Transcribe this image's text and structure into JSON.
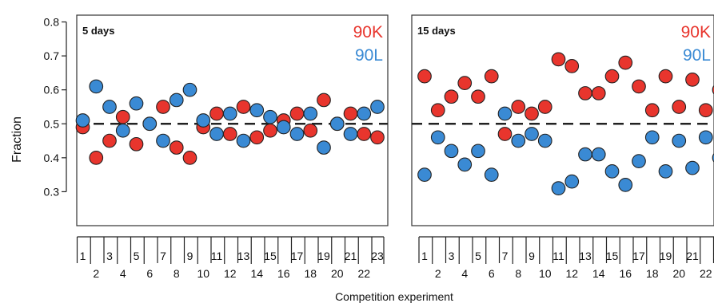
{
  "axis": {
    "ylabel": "Fraction",
    "xlabel": "Competition experiment",
    "yticks": [
      "0.8",
      "0.7",
      "0.6",
      "0.5",
      "0.4",
      "0.3"
    ],
    "ylim": [
      0.2,
      0.82
    ],
    "reference_line": 0.5,
    "odd_ticks": [
      "1",
      "3",
      "5",
      "7",
      "9",
      "11",
      "13",
      "15",
      "17",
      "19",
      "21",
      "23"
    ],
    "even_ticks": [
      "2",
      "4",
      "6",
      "8",
      "10",
      "12",
      "14",
      "16",
      "18",
      "20",
      "22"
    ]
  },
  "colors": {
    "90K": "#e8352d",
    "90L": "#3a8ad4"
  },
  "chart_data": [
    {
      "type": "scatter",
      "title": "5 days",
      "x": [
        1,
        2,
        3,
        4,
        5,
        6,
        7,
        8,
        9,
        10,
        11,
        12,
        13,
        14,
        15,
        16,
        17,
        18,
        19,
        20,
        21,
        22,
        23
      ],
      "series": [
        {
          "name": "90K",
          "values": [
            0.49,
            0.4,
            0.45,
            0.52,
            0.44,
            0.5,
            0.55,
            0.43,
            0.4,
            0.49,
            0.53,
            0.47,
            0.55,
            0.46,
            0.48,
            0.51,
            0.53,
            0.48,
            0.57,
            0.5,
            0.53,
            0.47,
            0.46
          ]
        },
        {
          "name": "90L",
          "values": [
            0.51,
            0.61,
            0.55,
            0.48,
            0.56,
            0.5,
            0.45,
            0.57,
            0.6,
            0.51,
            0.47,
            0.53,
            0.45,
            0.54,
            0.52,
            0.49,
            0.47,
            0.53,
            0.43,
            0.5,
            0.47,
            0.53,
            0.55
          ]
        }
      ]
    },
    {
      "type": "scatter",
      "title": "15 days",
      "x": [
        1,
        2,
        3,
        4,
        5,
        6,
        7,
        8,
        9,
        10,
        11,
        12,
        13,
        14,
        15,
        16,
        17,
        18,
        19,
        20,
        21,
        22,
        23
      ],
      "series": [
        {
          "name": "90K",
          "values": [
            0.64,
            0.54,
            0.58,
            0.62,
            0.58,
            0.64,
            0.47,
            0.55,
            0.53,
            0.55,
            0.69,
            0.67,
            0.59,
            0.59,
            0.64,
            0.68,
            0.61,
            0.54,
            0.64,
            0.55,
            0.63,
            0.54,
            0.6
          ]
        },
        {
          "name": "90L",
          "values": [
            0.35,
            0.46,
            0.42,
            0.38,
            0.42,
            0.35,
            0.53,
            0.45,
            0.47,
            0.45,
            0.31,
            0.33,
            0.41,
            0.41,
            0.36,
            0.32,
            0.39,
            0.46,
            0.36,
            0.45,
            0.37,
            0.46,
            0.4
          ]
        }
      ]
    }
  ]
}
